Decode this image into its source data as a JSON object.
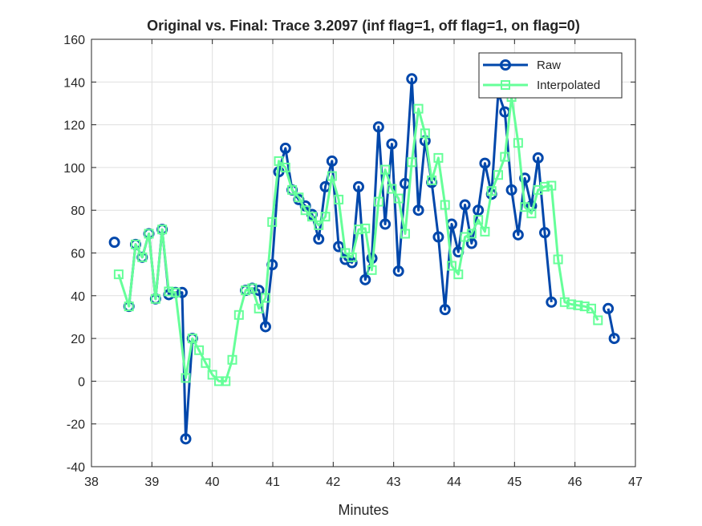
{
  "chart_data": {
    "type": "line",
    "title": "Original vs. Final: Trace 3.2097 (inf flag=1, off flag=1, on flag=0)",
    "xlabel": "Minutes",
    "ylabel": "",
    "xlim": [
      38,
      47
    ],
    "ylim": [
      -40,
      160
    ],
    "xticks": [
      38,
      39,
      40,
      41,
      42,
      43,
      44,
      45,
      46,
      47
    ],
    "yticks": [
      -40,
      -20,
      0,
      20,
      40,
      60,
      80,
      100,
      120,
      140,
      160
    ],
    "grid": true,
    "legend_position": "top-right",
    "series": [
      {
        "name": "Raw",
        "color": "#0047AB",
        "marker": "circle",
        "segments": [
          [
            [
              38.38,
              65
            ]
          ],
          [
            [
              38.62,
              35
            ],
            [
              38.73,
              64
            ],
            [
              38.84,
              58
            ],
            [
              38.95,
              69
            ],
            [
              39.06,
              38.5
            ],
            [
              39.17,
              71
            ],
            [
              39.28,
              40.5
            ],
            [
              39.39,
              41.5
            ],
            [
              39.5,
              41.5
            ],
            [
              39.56,
              -27
            ],
            [
              39.67,
              20
            ]
          ],
          [
            [
              40.55,
              42.5
            ],
            [
              40.66,
              43.5
            ],
            [
              40.77,
              42.5
            ],
            [
              40.88,
              25.5
            ],
            [
              40.99,
              54.5
            ],
            [
              41.1,
              98
            ],
            [
              41.21,
              109
            ],
            [
              41.32,
              89.5
            ],
            [
              41.43,
              85
            ],
            [
              41.54,
              82
            ],
            [
              41.65,
              78
            ],
            [
              41.76,
              66.5
            ],
            [
              41.87,
              91
            ],
            [
              41.98,
              103
            ],
            [
              42.09,
              63
            ],
            [
              42.2,
              57
            ],
            [
              42.31,
              55.5
            ],
            [
              42.42,
              91
            ],
            [
              42.53,
              47.5
            ],
            [
              42.64,
              57.5
            ],
            [
              42.75,
              119
            ],
            [
              42.86,
              73.5
            ],
            [
              42.97,
              111
            ],
            [
              43.08,
              51.5
            ],
            [
              43.19,
              92.5
            ],
            [
              43.3,
              141.5
            ],
            [
              43.41,
              80
            ],
            [
              43.52,
              112.5
            ],
            [
              43.63,
              93
            ],
            [
              43.74,
              67.5
            ],
            [
              43.85,
              33.5
            ],
            [
              43.96,
              73.5
            ],
            [
              44.07,
              60.5
            ],
            [
              44.18,
              82.5
            ],
            [
              44.29,
              64.5
            ],
            [
              44.4,
              80
            ],
            [
              44.51,
              102
            ],
            [
              44.62,
              87.5
            ],
            [
              44.73,
              135
            ],
            [
              44.84,
              126
            ],
            [
              44.95,
              89.5
            ],
            [
              45.06,
              68.5
            ],
            [
              45.17,
              95
            ],
            [
              45.28,
              82
            ],
            [
              45.39,
              104.5
            ],
            [
              45.5,
              69.5
            ],
            [
              45.61,
              37
            ]
          ],
          [
            [
              46.55,
              34
            ],
            [
              46.65,
              20
            ]
          ]
        ]
      },
      {
        "name": "Interpolated",
        "color": "#66FF99",
        "marker": "square",
        "segments": [
          [
            [
              38.45,
              50
            ],
            [
              38.62,
              35
            ],
            [
              38.73,
              64
            ],
            [
              38.84,
              58
            ],
            [
              38.95,
              69
            ],
            [
              39.06,
              38.5
            ],
            [
              39.17,
              71
            ],
            [
              39.28,
              42
            ],
            [
              39.39,
              41.5
            ],
            [
              39.56,
              1.5
            ],
            [
              39.67,
              20
            ],
            [
              39.78,
              14.5
            ],
            [
              39.89,
              8.5
            ],
            [
              40.0,
              3
            ],
            [
              40.11,
              0
            ],
            [
              40.22,
              0
            ],
            [
              40.33,
              10
            ],
            [
              40.44,
              31
            ],
            [
              40.55,
              42.5
            ],
            [
              40.66,
              43.5
            ],
            [
              40.77,
              34
            ],
            [
              40.88,
              39
            ],
            [
              40.99,
              74.5
            ],
            [
              41.1,
              103
            ],
            [
              41.21,
              100
            ],
            [
              41.32,
              89.5
            ],
            [
              41.43,
              86
            ],
            [
              41.54,
              80
            ],
            [
              41.65,
              77
            ],
            [
              41.76,
              73
            ],
            [
              41.87,
              77
            ],
            [
              41.98,
              96
            ],
            [
              42.09,
              85
            ],
            [
              42.2,
              60
            ],
            [
              42.31,
              58
            ],
            [
              42.42,
              71
            ],
            [
              42.53,
              71.5
            ],
            [
              42.64,
              52
            ],
            [
              42.75,
              84
            ],
            [
              42.86,
              99
            ],
            [
              42.97,
              90
            ],
            [
              43.08,
              85.5
            ],
            [
              43.19,
              69
            ],
            [
              43.3,
              102.5
            ],
            [
              43.41,
              127.5
            ],
            [
              43.52,
              116
            ],
            [
              43.63,
              94
            ],
            [
              43.74,
              104.5
            ],
            [
              43.85,
              82.5
            ],
            [
              43.96,
              54
            ],
            [
              44.07,
              50
            ],
            [
              44.18,
              67.5
            ],
            [
              44.29,
              69
            ],
            [
              44.4,
              75.5
            ],
            [
              44.51,
              70
            ],
            [
              44.62,
              89
            ],
            [
              44.73,
              96.5
            ],
            [
              44.84,
              105
            ],
            [
              44.95,
              133
            ],
            [
              45.06,
              111.5
            ],
            [
              45.17,
              81.5
            ],
            [
              45.28,
              78.5
            ],
            [
              45.39,
              89.5
            ],
            [
              45.5,
              91
            ],
            [
              45.61,
              91.5
            ],
            [
              45.72,
              57
            ],
            [
              45.83,
              37
            ],
            [
              45.94,
              36
            ],
            [
              46.05,
              35.5
            ],
            [
              46.16,
              35
            ],
            [
              46.27,
              34
            ],
            [
              46.38,
              28.5
            ]
          ]
        ]
      }
    ]
  }
}
